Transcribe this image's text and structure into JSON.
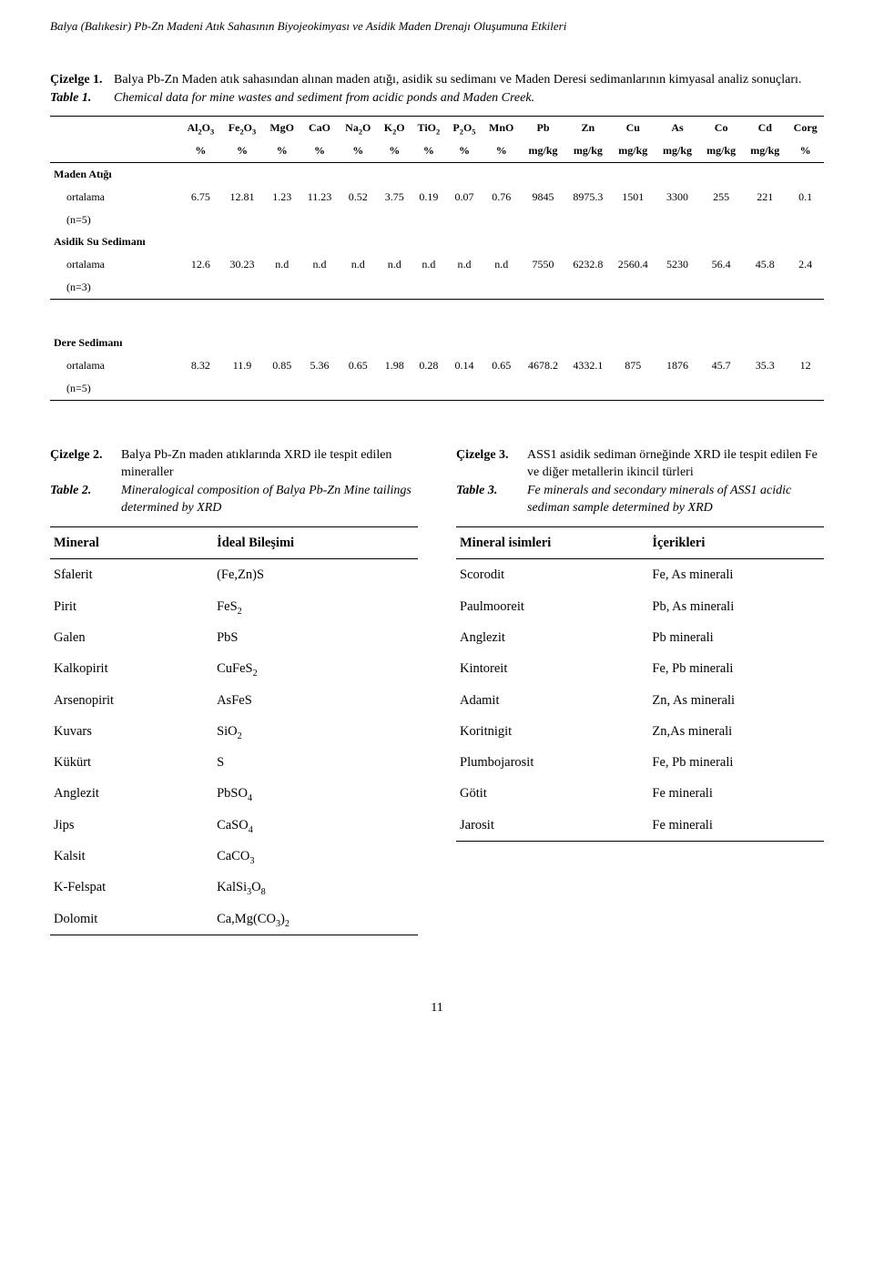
{
  "runningHeader": "Balya (Balıkesir) Pb-Zn Madeni Atık Sahasının Biyojeokimyası ve Asidik Maden Drenajı Oluşumuna Etkileri",
  "table1": {
    "captionLabelTr": "Çizelge 1.",
    "captionTextTr": "Balya Pb-Zn Maden atık sahasından alınan maden atığı, asidik su sedimanı ve Maden Deresi sedimanlarının kimyasal analiz sonuçları.",
    "captionLabelEn": "Table 1.",
    "captionTextEn": "Chemical data for mine wastes and sediment from acidic ponds and Maden Creek.",
    "columns": [
      "Al₂O₃",
      "Fe₂O₃",
      "MgO",
      "CaO",
      "Na₂O",
      "K₂O",
      "TiO₂",
      "P₂O₅",
      "MnO",
      "Pb",
      "Zn",
      "Cu",
      "As",
      "Co",
      "Cd",
      "Corg"
    ],
    "units": [
      "%",
      "%",
      "%",
      "%",
      "%",
      "%",
      "%",
      "%",
      "%",
      "mg/kg",
      "mg/kg",
      "mg/kg",
      "mg/kg",
      "mg/kg",
      "mg/kg",
      "%"
    ],
    "sections": [
      {
        "title": "Maden Atığı",
        "rows": [
          {
            "label": "ortalama",
            "values": [
              "6.75",
              "12.81",
              "1.23",
              "11.23",
              "0.52",
              "3.75",
              "0.19",
              "0.07",
              "0.76",
              "9845",
              "8975.3",
              "1501",
              "3300",
              "255",
              "221",
              "0.1"
            ]
          },
          {
            "label": "(n=5)",
            "values": []
          }
        ]
      },
      {
        "title": "Asidik Su Sedimanı",
        "rows": [
          {
            "label": "ortalama",
            "values": [
              "12.6",
              "30.23",
              "n.d",
              "n.d",
              "n.d",
              "n.d",
              "n.d",
              "n.d",
              "n.d",
              "7550",
              "6232.8",
              "2560.4",
              "5230",
              "56.4",
              "45.8",
              "2.4"
            ]
          },
          {
            "label": "(n=3)",
            "values": []
          }
        ]
      }
    ],
    "bottomSection": {
      "title": "Dere Sedimanı",
      "rows": [
        {
          "label": "ortalama",
          "values": [
            "8.32",
            "11.9",
            "0.85",
            "5.36",
            "0.65",
            "1.98",
            "0.28",
            "0.14",
            "0.65",
            "4678.2",
            "4332.1",
            "875",
            "1876",
            "45.7",
            "35.3",
            "12"
          ]
        },
        {
          "label": "(n=5)",
          "values": []
        }
      ]
    },
    "styling": {
      "font_size": 12,
      "border_color": "#000000",
      "background_color": "#ffffff"
    }
  },
  "table2": {
    "captionLabelTr": "Çizelge 2.",
    "captionTextTr": "Balya Pb-Zn maden atıklarında XRD ile tespit edilen mineraller",
    "captionLabelEn": "Table 2.",
    "captionTextEn": "Mineralogical composition of Balya Pb-Zn Mine tailings determined by XRD",
    "columns": [
      "Mineral",
      "İdeal Bileşimi"
    ],
    "rows": [
      [
        "Sfalerit",
        "(Fe,Zn)S"
      ],
      [
        "Pirit",
        "FeS₂"
      ],
      [
        "Galen",
        "PbS"
      ],
      [
        "Kalkopirit",
        "CuFeS₂"
      ],
      [
        "Arsenopirit",
        "AsFeS"
      ],
      [
        "Kuvars",
        "SiO₂"
      ],
      [
        "Kükürt",
        "S"
      ],
      [
        "Anglezit",
        "PbSO₄"
      ],
      [
        "Jips",
        "CaSO₄"
      ],
      [
        "Kalsit",
        "CaCO₃"
      ],
      [
        "K-Felspat",
        "KalSi₃O₈"
      ],
      [
        "Dolomit",
        "Ca,Mg(CO₃)₂"
      ]
    ]
  },
  "table3": {
    "captionLabelTr": "Çizelge 3.",
    "captionTextTr": "ASS1 asidik sediman örneğinde XRD ile tespit edilen Fe ve diğer metallerin ikincil türleri",
    "captionLabelEn": "Table 3.",
    "captionTextEn": "Fe minerals and secondary minerals of ASS1 acidic sediman sample determined by XRD",
    "columns": [
      "Mineral isimleri",
      "İçerikleri"
    ],
    "rows": [
      [
        "Scorodit",
        "Fe, As minerali"
      ],
      [
        "Paulmooreit",
        "Pb, As minerali"
      ],
      [
        "Anglezit",
        "Pb minerali"
      ],
      [
        "Kintoreit",
        "Fe, Pb minerali"
      ],
      [
        "Adamit",
        "Zn, As minerali"
      ],
      [
        "Koritnigit",
        "Zn,As minerali"
      ],
      [
        "Plumbojarosit",
        "Fe, Pb minerali"
      ],
      [
        "Götit",
        "Fe minerali"
      ],
      [
        "Jarosit",
        "Fe minerali"
      ]
    ]
  },
  "pageNumber": "11"
}
